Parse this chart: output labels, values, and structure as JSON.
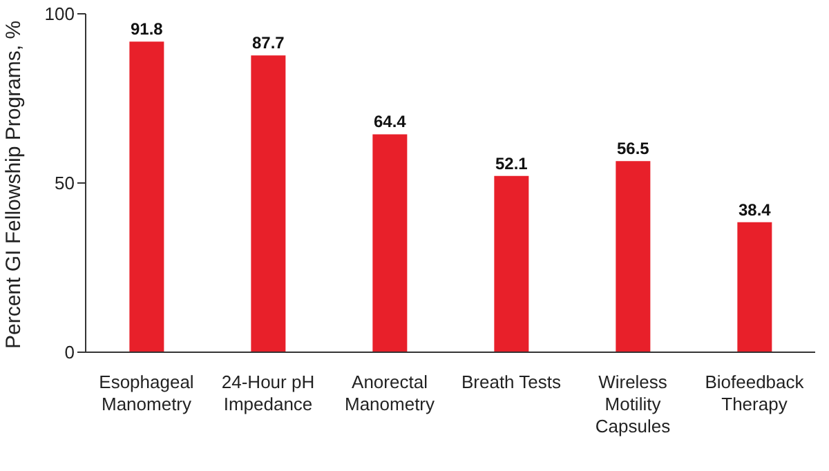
{
  "chart_data": {
    "type": "bar",
    "ylabel": "Percent GI Fellowship Programs, %",
    "categories": [
      "Esophageal Manometry",
      "24-Hour pH Impedance",
      "Anorectal Manometry",
      "Breath Tests",
      "Wireless Motility Capsules",
      "Biofeedback Therapy"
    ],
    "values": [
      91.8,
      87.7,
      64.4,
      52.1,
      56.5,
      38.4
    ],
    "color": "#e8202a",
    "ylim": [
      0,
      100
    ],
    "yticks": [
      0,
      50,
      100
    ],
    "data_labels": true,
    "grid": false,
    "legend": false
  }
}
